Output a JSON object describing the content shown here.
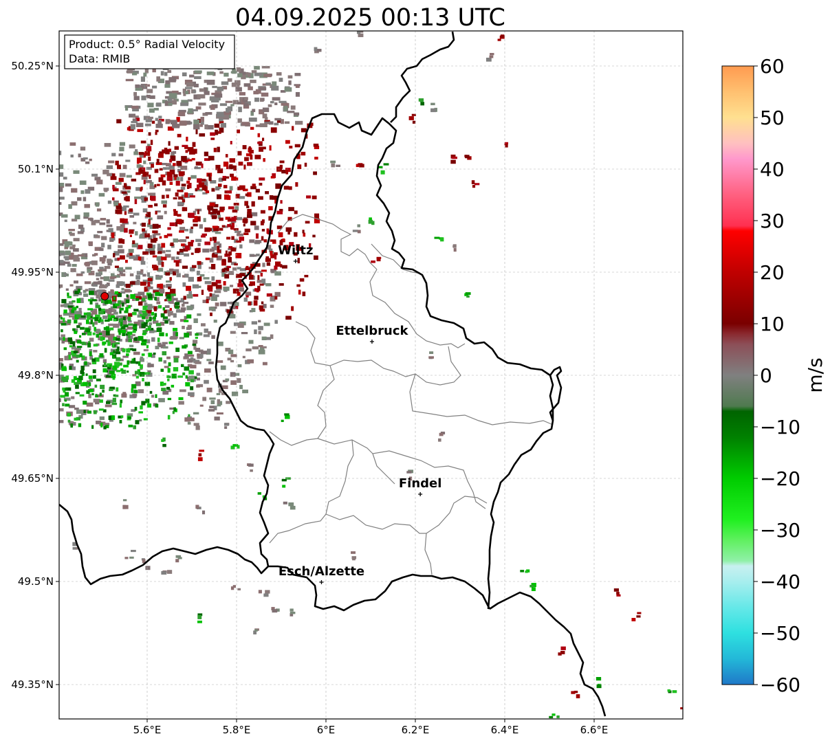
{
  "title": "04.09.2025 00:13 UTC",
  "info_box": {
    "product_line": "Product: 0.5° Radial Velocity",
    "data_line": "Data: RMIB"
  },
  "map": {
    "lon_range": [
      5.4,
      6.8
    ],
    "lat_range": [
      49.3,
      50.3
    ],
    "lon_ticks": [
      {
        "value": 5.6,
        "label": "5.6°E"
      },
      {
        "value": 5.8,
        "label": "5.8°E"
      },
      {
        "value": 6.0,
        "label": "6°E"
      },
      {
        "value": 6.2,
        "label": "6.2°E"
      },
      {
        "value": 6.4,
        "label": "6.4°E"
      },
      {
        "value": 6.6,
        "label": "6.6°E"
      }
    ],
    "lat_ticks": [
      {
        "value": 50.25,
        "label": "50.25°N"
      },
      {
        "value": 50.1,
        "label": "50.1°N"
      },
      {
        "value": 49.95,
        "label": "49.95°N"
      },
      {
        "value": 49.8,
        "label": "49.8°N"
      },
      {
        "value": 49.65,
        "label": "49.65°N"
      },
      {
        "value": 49.5,
        "label": "49.5°N"
      },
      {
        "value": 49.35,
        "label": "49.35°N"
      }
    ],
    "radar_site": {
      "lon": 5.505,
      "lat": 49.915,
      "color": "#e00000"
    },
    "cities": [
      {
        "name": "Wiltz",
        "lon": 5.932,
        "lat": 49.966
      },
      {
        "name": "Ettelbruck",
        "lon": 6.103,
        "lat": 49.849
      },
      {
        "name": "Findel",
        "lon": 6.211,
        "lat": 49.627
      },
      {
        "name": "Esch/Alzette",
        "lon": 5.99,
        "lat": 49.499
      }
    ],
    "border_color": "#000000",
    "canton_color": "#808080",
    "grid_color": "#b0b0b0"
  },
  "colorbar": {
    "unit": "m/s",
    "min": -60,
    "max": 60,
    "ticks": [
      {
        "value": 60,
        "label": "60"
      },
      {
        "value": 50,
        "label": "50"
      },
      {
        "value": 40,
        "label": "40"
      },
      {
        "value": 30,
        "label": "30"
      },
      {
        "value": 20,
        "label": "20"
      },
      {
        "value": 10,
        "label": "10"
      },
      {
        "value": 0,
        "label": "0"
      },
      {
        "value": -10,
        "label": "−10"
      },
      {
        "value": -20,
        "label": "−20"
      },
      {
        "value": -30,
        "label": "−30"
      },
      {
        "value": -40,
        "label": "−40"
      },
      {
        "value": -50,
        "label": "−50"
      },
      {
        "value": -60,
        "label": "−60"
      }
    ],
    "stops": [
      {
        "value": -60,
        "color": "#1f78c8"
      },
      {
        "value": -55,
        "color": "#23b8d8"
      },
      {
        "value": -50,
        "color": "#2ee0e0"
      },
      {
        "value": -45,
        "color": "#66e8e8"
      },
      {
        "value": -40,
        "color": "#a8eeee"
      },
      {
        "value": -37,
        "color": "#c8f0f0"
      },
      {
        "value": -36,
        "color": "#90f0a8"
      },
      {
        "value": -32,
        "color": "#60f060"
      },
      {
        "value": -28,
        "color": "#20f020"
      },
      {
        "value": -20,
        "color": "#00cc00"
      },
      {
        "value": -12,
        "color": "#008000"
      },
      {
        "value": -7,
        "color": "#006400"
      },
      {
        "value": -6,
        "color": "#4f7a4f"
      },
      {
        "value": 0,
        "color": "#808080"
      },
      {
        "value": 6,
        "color": "#8c4f58"
      },
      {
        "value": 8,
        "color": "#8a2a30"
      },
      {
        "value": 10,
        "color": "#7a0000"
      },
      {
        "value": 20,
        "color": "#c00000"
      },
      {
        "value": 28,
        "color": "#ff0000"
      },
      {
        "value": 29,
        "color": "#ff3050"
      },
      {
        "value": 35,
        "color": "#ff6080"
      },
      {
        "value": 42,
        "color": "#ff99cc"
      },
      {
        "value": 45,
        "color": "#ffc0c0"
      },
      {
        "value": 50,
        "color": "#ffe090"
      },
      {
        "value": 55,
        "color": "#ffc070"
      },
      {
        "value": 60,
        "color": "#ff9a50"
      }
    ]
  }
}
